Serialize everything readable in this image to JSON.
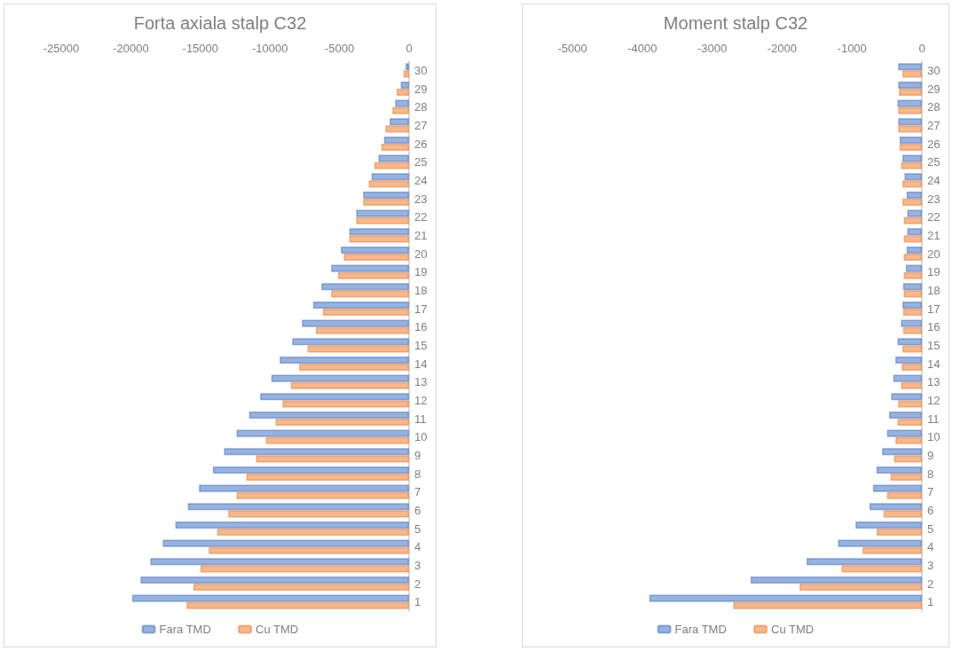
{
  "chart_data": [
    {
      "type": "bar",
      "orientation": "horizontal",
      "title": "Forta axiala stalp C32",
      "legend": "bottom",
      "grid": false,
      "categories": [
        "30",
        "29",
        "28",
        "27",
        "26",
        "25",
        "24",
        "23",
        "22",
        "21",
        "20",
        "19",
        "18",
        "17",
        "16",
        "15",
        "14",
        "13",
        "12",
        "11",
        "10",
        "9",
        "8",
        "7",
        "6",
        "5",
        "4",
        "3",
        "2",
        "1"
      ],
      "xlim": [
        -25000,
        0
      ],
      "xticks": [
        -25000,
        -20000,
        -15000,
        -10000,
        -5000,
        0
      ],
      "series": [
        {
          "name": "Fara TMD",
          "color": "#4472c4",
          "values": [
            -250,
            -600,
            -1000,
            -1400,
            -1800,
            -2200,
            -2700,
            -3300,
            -3800,
            -4300,
            -4900,
            -5600,
            -6300,
            -6900,
            -7700,
            -8400,
            -9300,
            -9900,
            -10700,
            -11500,
            -12400,
            -13300,
            -14100,
            -15100,
            -15900,
            -16800,
            -17700,
            -18600,
            -19300,
            -19900
          ]
        },
        {
          "name": "Cu TMD",
          "color": "#ed7d31",
          "values": [
            -400,
            -900,
            -1200,
            -1700,
            -2000,
            -2500,
            -2900,
            -3300,
            -3800,
            -4300,
            -4700,
            -5100,
            -5600,
            -6200,
            -6700,
            -7300,
            -7900,
            -8500,
            -9100,
            -9600,
            -10300,
            -11000,
            -11700,
            -12400,
            -13000,
            -13800,
            -14400,
            -15000,
            -15500,
            -16000
          ]
        }
      ]
    },
    {
      "type": "bar",
      "orientation": "horizontal",
      "title": "Moment stalp C32",
      "legend": "bottom",
      "grid": false,
      "categories": [
        "30",
        "29",
        "28",
        "27",
        "26",
        "25",
        "24",
        "23",
        "22",
        "21",
        "20",
        "19",
        "18",
        "17",
        "16",
        "15",
        "14",
        "13",
        "12",
        "11",
        "10",
        "9",
        "8",
        "7",
        "6",
        "5",
        "4",
        "3",
        "2",
        "1"
      ],
      "xlim": [
        -5000,
        0
      ],
      "xticks": [
        -5000,
        -4000,
        -3000,
        -2000,
        -1000,
        0
      ],
      "series": [
        {
          "name": "Fara TMD",
          "color": "#4472c4",
          "values": [
            -340,
            -340,
            -350,
            -340,
            -320,
            -280,
            -250,
            -220,
            -210,
            -210,
            -220,
            -230,
            -270,
            -280,
            -300,
            -350,
            -380,
            -410,
            -440,
            -470,
            -500,
            -570,
            -650,
            -700,
            -750,
            -950,
            -1200,
            -1650,
            -2450,
            -3900
          ]
        },
        {
          "name": "Cu TMD",
          "color": "#ed7d31",
          "values": [
            -280,
            -330,
            -340,
            -340,
            -320,
            -300,
            -280,
            -280,
            -260,
            -260,
            -260,
            -260,
            -260,
            -270,
            -270,
            -280,
            -290,
            -300,
            -340,
            -350,
            -380,
            -400,
            -450,
            -500,
            -550,
            -650,
            -850,
            -1150,
            -1750,
            -2700
          ]
        }
      ]
    }
  ]
}
